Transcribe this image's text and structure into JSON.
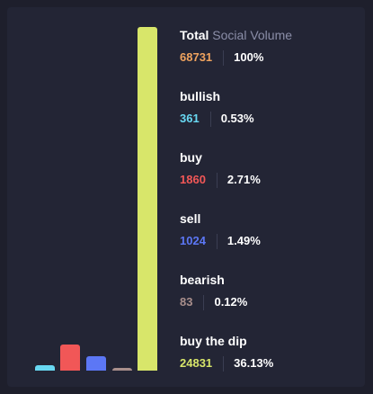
{
  "chart_data": {
    "type": "bar",
    "categories": [
      "bullish",
      "buy",
      "sell",
      "bearish",
      "buy the dip",
      "Total Social Volume"
    ],
    "values": [
      361,
      1860,
      1024,
      83,
      24831,
      68731
    ]
  },
  "stats": [
    {
      "label": "Total",
      "label_muted": "Social Volume",
      "count": "68731",
      "percent": "100%",
      "color": "#f0a35e"
    },
    {
      "label": "bullish",
      "count": "361",
      "percent": "0.53%",
      "color": "#68d8f2"
    },
    {
      "label": "buy",
      "count": "1860",
      "percent": "2.71%",
      "color": "#f15757"
    },
    {
      "label": "sell",
      "count": "1024",
      "percent": "1.49%",
      "color": "#5c77f5"
    },
    {
      "label": "bearish",
      "count": "83",
      "percent": "0.12%",
      "color": "#a98f8c"
    },
    {
      "label": "buy the dip",
      "count": "24831",
      "percent": "36.13%",
      "color": "#d8e66a"
    }
  ],
  "bar_colors": [
    "#68d8f2",
    "#f15757",
    "#5c77f5",
    "#a98f8c",
    "#d8e66a"
  ]
}
